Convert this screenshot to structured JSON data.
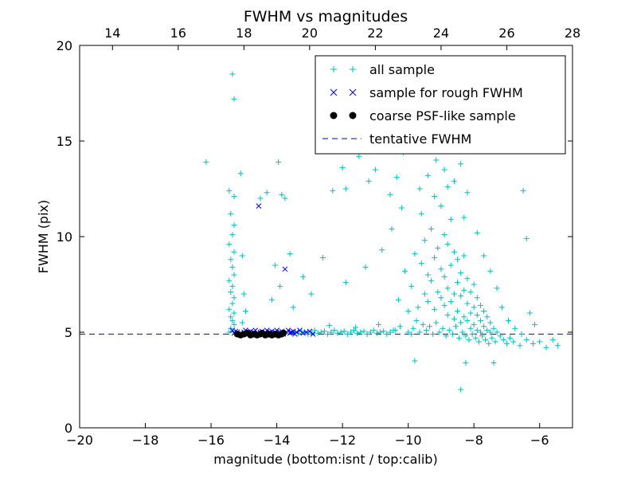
{
  "figure": {
    "background": "#ffffff"
  },
  "chart_data": {
    "type": "scatter",
    "title": "FWHM vs magnitudes",
    "xlabel": "magnitude (bottom:isnt / top:calib)",
    "ylabel": "FWHM (pix)",
    "xlim": [
      -20,
      -5
    ],
    "ylim": [
      0,
      20
    ],
    "grid": false,
    "legend_position": "upper right",
    "axis_color": "#000000",
    "bottom_ticks": [
      {
        "x": -20,
        "label": "−20"
      },
      {
        "x": -18,
        "label": "−18"
      },
      {
        "x": -16,
        "label": "−16"
      },
      {
        "x": -14,
        "label": "−14"
      },
      {
        "x": -12,
        "label": "−12"
      },
      {
        "x": -10,
        "label": "−10"
      },
      {
        "x": -8,
        "label": "−8"
      },
      {
        "x": -6,
        "label": "−6"
      }
    ],
    "top_ticks": [
      {
        "calib": 14,
        "x": -19,
        "label": "14"
      },
      {
        "calib": 16,
        "x": -17,
        "label": "16"
      },
      {
        "calib": 18,
        "x": -15,
        "label": "18"
      },
      {
        "calib": 20,
        "x": -13,
        "label": "20"
      },
      {
        "calib": 22,
        "x": -11,
        "label": "22"
      },
      {
        "calib": 24,
        "x": -9,
        "label": "24"
      },
      {
        "calib": 26,
        "x": -7,
        "label": "26"
      },
      {
        "calib": 28,
        "x": -5,
        "label": "28"
      }
    ],
    "y_ticks": [
      {
        "y": 0,
        "label": "0"
      },
      {
        "y": 5,
        "label": "5"
      },
      {
        "y": 10,
        "label": "10"
      },
      {
        "y": 15,
        "label": "15"
      },
      {
        "y": 20,
        "label": "20"
      }
    ],
    "series": [
      {
        "name": "all sample",
        "marker": "plus",
        "color": "#00bfbf",
        "points": [
          [
            -16.15,
            13.9
          ],
          [
            -15.35,
            18.5
          ],
          [
            -15.3,
            17.2
          ],
          [
            -15.45,
            12.4
          ],
          [
            -15.3,
            12.1
          ],
          [
            -15.4,
            11.2
          ],
          [
            -15.3,
            10.6
          ],
          [
            -15.35,
            10.1
          ],
          [
            -15.45,
            9.6
          ],
          [
            -15.3,
            9.2
          ],
          [
            -15.4,
            8.8
          ],
          [
            -15.35,
            8.4
          ],
          [
            -15.3,
            8.0
          ],
          [
            -15.45,
            7.7
          ],
          [
            -15.35,
            7.4
          ],
          [
            -15.4,
            7.1
          ],
          [
            -15.3,
            6.8
          ],
          [
            -15.35,
            6.5
          ],
          [
            -15.45,
            6.2
          ],
          [
            -15.3,
            6.0
          ],
          [
            -15.4,
            5.8
          ],
          [
            -15.35,
            5.6
          ],
          [
            -15.3,
            5.4
          ],
          [
            -15.4,
            5.2
          ],
          [
            -15.45,
            5.0
          ],
          [
            -15.1,
            13.3
          ],
          [
            -15.05,
            9.0
          ],
          [
            -15.0,
            7.0
          ],
          [
            -14.95,
            6.1
          ],
          [
            -15.05,
            5.5
          ],
          [
            -14.5,
            12.0
          ],
          [
            -14.3,
            12.3
          ],
          [
            -13.95,
            13.9
          ],
          [
            -13.85,
            12.2
          ],
          [
            -13.75,
            12.0
          ],
          [
            -14.05,
            8.5
          ],
          [
            -13.9,
            7.4
          ],
          [
            -13.6,
            9.1
          ],
          [
            -13.5,
            6.3
          ],
          [
            -13.2,
            7.9
          ],
          [
            -12.95,
            7.0
          ],
          [
            -12.6,
            8.9
          ],
          [
            -14.15,
            6.7
          ],
          [
            -13.45,
            5.0
          ],
          [
            -13.35,
            4.95
          ],
          [
            -13.25,
            5.05
          ],
          [
            -13.15,
            5.0
          ],
          [
            -13.05,
            4.9
          ],
          [
            -12.95,
            5.0
          ],
          [
            -12.85,
            5.1
          ],
          [
            -12.75,
            4.95
          ],
          [
            -12.65,
            5.0
          ],
          [
            -12.55,
            5.05
          ],
          [
            -12.45,
            4.9
          ],
          [
            -12.35,
            5.0
          ],
          [
            -12.25,
            5.1
          ],
          [
            -12.15,
            4.95
          ],
          [
            -12.05,
            5.0
          ],
          [
            -11.95,
            5.05
          ],
          [
            -11.85,
            4.9
          ],
          [
            -11.75,
            5.0
          ],
          [
            -11.65,
            5.1
          ],
          [
            -11.55,
            4.95
          ],
          [
            -11.45,
            5.0
          ],
          [
            -11.35,
            5.05
          ],
          [
            -11.25,
            4.9
          ],
          [
            -11.15,
            5.0
          ],
          [
            -11.05,
            5.1
          ],
          [
            -10.95,
            4.95
          ],
          [
            -10.85,
            5.0
          ],
          [
            -10.75,
            5.05
          ],
          [
            -10.65,
            4.9
          ],
          [
            -10.55,
            5.0
          ],
          [
            -10.45,
            5.1
          ],
          [
            -12.4,
            5.35
          ],
          [
            -11.6,
            5.25
          ],
          [
            -10.9,
            5.4
          ],
          [
            -12.3,
            12.4
          ],
          [
            -12.0,
            13.6
          ],
          [
            -11.9,
            12.5
          ],
          [
            -11.5,
            14.2
          ],
          [
            -11.2,
            12.9
          ],
          [
            -11.0,
            13.5
          ],
          [
            -10.75,
            14.8
          ],
          [
            -10.55,
            12.2
          ],
          [
            -10.35,
            13.1
          ],
          [
            -10.15,
            14.4
          ],
          [
            -9.95,
            15.3
          ],
          [
            -10.2,
            11.5
          ],
          [
            -10.5,
            10.4
          ],
          [
            -10.8,
            9.3
          ],
          [
            -11.3,
            8.4
          ],
          [
            -11.9,
            7.6
          ],
          [
            -9.9,
            16.2
          ],
          [
            -9.6,
            16.8
          ],
          [
            -9.3,
            15.6
          ],
          [
            -9.05,
            16.5
          ],
          [
            -10.4,
            5.1
          ],
          [
            -10.3,
            6.7
          ],
          [
            -10.25,
            5.3
          ],
          [
            -10.1,
            8.2
          ],
          [
            -10.0,
            5.0
          ],
          [
            -10.0,
            6.1
          ],
          [
            -9.9,
            4.9
          ],
          [
            -9.9,
            7.4
          ],
          [
            -9.85,
            5.2
          ],
          [
            -9.8,
            9.1
          ],
          [
            -9.75,
            5.6
          ],
          [
            -9.7,
            6.3
          ],
          [
            -9.65,
            5.0
          ],
          [
            -9.6,
            8.6
          ],
          [
            -9.6,
            11.2
          ],
          [
            -9.55,
            5.4
          ],
          [
            -9.5,
            7.0
          ],
          [
            -9.5,
            9.8
          ],
          [
            -9.45,
            5.1
          ],
          [
            -9.4,
            6.6
          ],
          [
            -9.4,
            8.0
          ],
          [
            -9.35,
            5.3
          ],
          [
            -9.3,
            7.7
          ],
          [
            -9.3,
            10.4
          ],
          [
            -9.25,
            4.9
          ],
          [
            -9.2,
            6.2
          ],
          [
            -9.2,
            8.9
          ],
          [
            -9.2,
            12.1
          ],
          [
            -9.15,
            5.5
          ],
          [
            -9.1,
            7.1
          ],
          [
            -9.1,
            9.4
          ],
          [
            -9.05,
            5.0
          ],
          [
            -9.0,
            6.8
          ],
          [
            -9.0,
            8.3
          ],
          [
            -9.0,
            11.6
          ],
          [
            -8.95,
            5.2
          ],
          [
            -8.9,
            6.4
          ],
          [
            -8.9,
            7.9
          ],
          [
            -8.9,
            10.1
          ],
          [
            -8.85,
            4.8
          ],
          [
            -8.8,
            5.9
          ],
          [
            -8.8,
            7.3
          ],
          [
            -8.8,
            9.6
          ],
          [
            -8.8,
            12.6
          ],
          [
            -8.75,
            5.1
          ],
          [
            -8.7,
            6.6
          ],
          [
            -8.7,
            8.5
          ],
          [
            -8.7,
            10.9
          ],
          [
            -8.65,
            4.9
          ],
          [
            -8.6,
            5.7
          ],
          [
            -8.6,
            7.0
          ],
          [
            -8.6,
            9.2
          ],
          [
            -8.55,
            5.3
          ],
          [
            -8.5,
            6.1
          ],
          [
            -8.5,
            7.6
          ],
          [
            -8.5,
            8.8
          ],
          [
            -8.45,
            4.7
          ],
          [
            -8.4,
            5.5
          ],
          [
            -8.4,
            6.9
          ],
          [
            -8.4,
            8.1
          ],
          [
            -8.35,
            5.0
          ],
          [
            -8.3,
            5.8
          ],
          [
            -8.3,
            7.2
          ],
          [
            -8.3,
            9.0
          ],
          [
            -8.25,
            4.8
          ],
          [
            -8.2,
            5.6
          ],
          [
            -8.2,
            6.5
          ],
          [
            -8.2,
            7.8
          ],
          [
            -8.15,
            4.6
          ],
          [
            -8.1,
            5.2
          ],
          [
            -8.1,
            6.0
          ],
          [
            -8.1,
            7.1
          ],
          [
            -8.05,
            4.9
          ],
          [
            -8.0,
            5.4
          ],
          [
            -8.0,
            6.3
          ],
          [
            -8.0,
            7.5
          ],
          [
            -7.95,
            4.7
          ],
          [
            -7.9,
            5.1
          ],
          [
            -7.9,
            5.9
          ],
          [
            -7.9,
            6.8
          ],
          [
            -7.85,
            4.5
          ],
          [
            -7.8,
            5.0
          ],
          [
            -7.8,
            5.6
          ],
          [
            -7.8,
            6.4
          ],
          [
            -7.75,
            4.8
          ],
          [
            -7.7,
            5.3
          ],
          [
            -7.7,
            6.1
          ],
          [
            -7.65,
            4.6
          ],
          [
            -7.6,
            5.1
          ],
          [
            -7.6,
            5.8
          ],
          [
            -7.55,
            4.4
          ],
          [
            -7.5,
            5.0
          ],
          [
            -7.5,
            5.5
          ],
          [
            -7.45,
            4.7
          ],
          [
            -7.4,
            5.2
          ],
          [
            -7.35,
            4.5
          ],
          [
            -7.3,
            5.0
          ],
          [
            -7.2,
            4.8
          ],
          [
            -7.1,
            4.6
          ],
          [
            -7.0,
            4.4
          ],
          [
            -6.9,
            4.7
          ],
          [
            -6.8,
            4.5
          ],
          [
            -6.6,
            4.3
          ],
          [
            -6.4,
            4.6
          ],
          [
            -6.2,
            4.4
          ],
          [
            -9.4,
            13.2
          ],
          [
            -9.15,
            14.0
          ],
          [
            -8.9,
            13.5
          ],
          [
            -8.6,
            12.9
          ],
          [
            -8.4,
            13.8
          ],
          [
            -9.65,
            12.5
          ],
          [
            -8.2,
            12.3
          ],
          [
            -9.0,
            15.0
          ],
          [
            -8.7,
            14.5
          ],
          [
            -8.1,
            15.9
          ],
          [
            -8.3,
            11.0
          ],
          [
            -7.9,
            10.2
          ],
          [
            -7.7,
            9.0
          ],
          [
            -7.5,
            8.2
          ],
          [
            -7.3,
            7.3
          ],
          [
            -7.15,
            6.3
          ],
          [
            -6.95,
            5.6
          ],
          [
            -6.75,
            5.2
          ],
          [
            -6.55,
            4.9
          ],
          [
            -6.5,
            12.4
          ],
          [
            -6.4,
            9.9
          ],
          [
            -6.3,
            6.0
          ],
          [
            -6.15,
            5.4
          ],
          [
            -6.0,
            4.5
          ],
          [
            -5.8,
            4.2
          ],
          [
            -5.6,
            4.6
          ],
          [
            -5.45,
            4.3
          ],
          [
            -8.4,
            2.0
          ],
          [
            -8.25,
            3.4
          ],
          [
            -7.4,
            3.4
          ],
          [
            -9.8,
            3.5
          ]
        ]
      },
      {
        "name": "sample for rough FWHM",
        "marker": "x",
        "color": "#0000ff",
        "points": [
          [
            -15.35,
            5.1
          ],
          [
            -15.3,
            4.95
          ],
          [
            -15.25,
            5.05
          ],
          [
            -15.2,
            5.0
          ],
          [
            -15.1,
            4.9
          ],
          [
            -15.0,
            5.0
          ],
          [
            -14.95,
            5.1
          ],
          [
            -14.9,
            4.95
          ],
          [
            -14.85,
            5.0
          ],
          [
            -14.8,
            5.05
          ],
          [
            -14.75,
            4.9
          ],
          [
            -14.7,
            5.0
          ],
          [
            -14.65,
            5.1
          ],
          [
            -14.6,
            4.95
          ],
          [
            -14.55,
            11.6
          ],
          [
            -14.5,
            5.0
          ],
          [
            -14.45,
            5.05
          ],
          [
            -14.4,
            4.9
          ],
          [
            -14.35,
            5.0
          ],
          [
            -14.3,
            5.1
          ],
          [
            -14.25,
            4.95
          ],
          [
            -14.2,
            5.0
          ],
          [
            -14.15,
            5.05
          ],
          [
            -14.1,
            4.9
          ],
          [
            -14.05,
            5.0
          ],
          [
            -14.0,
            5.1
          ],
          [
            -13.95,
            4.95
          ],
          [
            -13.9,
            5.0
          ],
          [
            -13.85,
            5.05
          ],
          [
            -13.8,
            4.9
          ],
          [
            -13.75,
            8.3
          ],
          [
            -13.7,
            5.0
          ],
          [
            -13.65,
            5.1
          ],
          [
            -13.6,
            4.95
          ],
          [
            -13.55,
            5.0
          ],
          [
            -13.5,
            5.05
          ],
          [
            -13.45,
            4.9
          ],
          [
            -13.4,
            5.0
          ],
          [
            -13.3,
            5.1
          ],
          [
            -13.2,
            4.95
          ],
          [
            -13.1,
            5.0
          ],
          [
            -13.0,
            5.05
          ],
          [
            -12.9,
            4.9
          ]
        ]
      },
      {
        "name": "coarse PSF-like sample",
        "marker": "dot",
        "color": "#000000",
        "points": [
          [
            -15.2,
            4.9
          ],
          [
            -15.1,
            4.85
          ],
          [
            -15.0,
            4.9
          ],
          [
            -14.9,
            4.95
          ],
          [
            -14.8,
            4.85
          ],
          [
            -14.7,
            4.9
          ],
          [
            -14.6,
            4.85
          ],
          [
            -14.5,
            4.9
          ],
          [
            -14.45,
            4.95
          ],
          [
            -14.35,
            4.85
          ],
          [
            -14.25,
            4.9
          ],
          [
            -14.15,
            4.85
          ],
          [
            -14.05,
            4.9
          ],
          [
            -13.95,
            4.85
          ],
          [
            -13.85,
            4.9
          ],
          [
            -13.8,
            4.95
          ]
        ]
      }
    ],
    "hlines": [
      {
        "name": "tentative FWHM",
        "y": 4.9,
        "color": "#0000ff",
        "style": "dashed"
      }
    ]
  }
}
